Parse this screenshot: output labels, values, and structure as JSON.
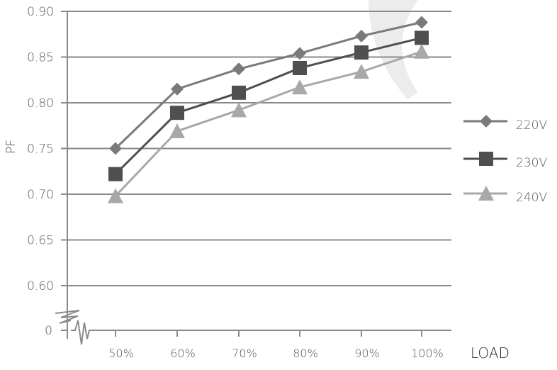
{
  "chart_data": {
    "type": "line",
    "title": "",
    "xlabel": "LOAD",
    "ylabel": "PF",
    "categories": [
      "50%",
      "60%",
      "70%",
      "80%",
      "90%",
      "100%"
    ],
    "yticks": [
      "0",
      "0.60",
      "0.65",
      "0.70",
      "0.75",
      "0.80",
      "0.85",
      "0.90"
    ],
    "ylim": [
      0.6,
      0.9
    ],
    "axis_break": true,
    "grid": true,
    "legend_position": "right",
    "series": [
      {
        "name": "220V",
        "marker": "diamond",
        "color": "#7a7a7a",
        "values": [
          0.75,
          0.815,
          0.837,
          0.854,
          0.873,
          0.888
        ]
      },
      {
        "name": "230V",
        "marker": "square",
        "color": "#4f4f4f",
        "values": [
          0.722,
          0.789,
          0.811,
          0.838,
          0.855,
          0.871
        ]
      },
      {
        "name": "240V",
        "marker": "triangle",
        "color": "#a8a8a8",
        "values": [
          0.698,
          0.769,
          0.792,
          0.817,
          0.834,
          0.856
        ]
      }
    ]
  },
  "colors": {
    "grid": "#8a8a8a",
    "axis": "#8a8a8a",
    "text": "#555555",
    "watermark": "#ececec"
  }
}
